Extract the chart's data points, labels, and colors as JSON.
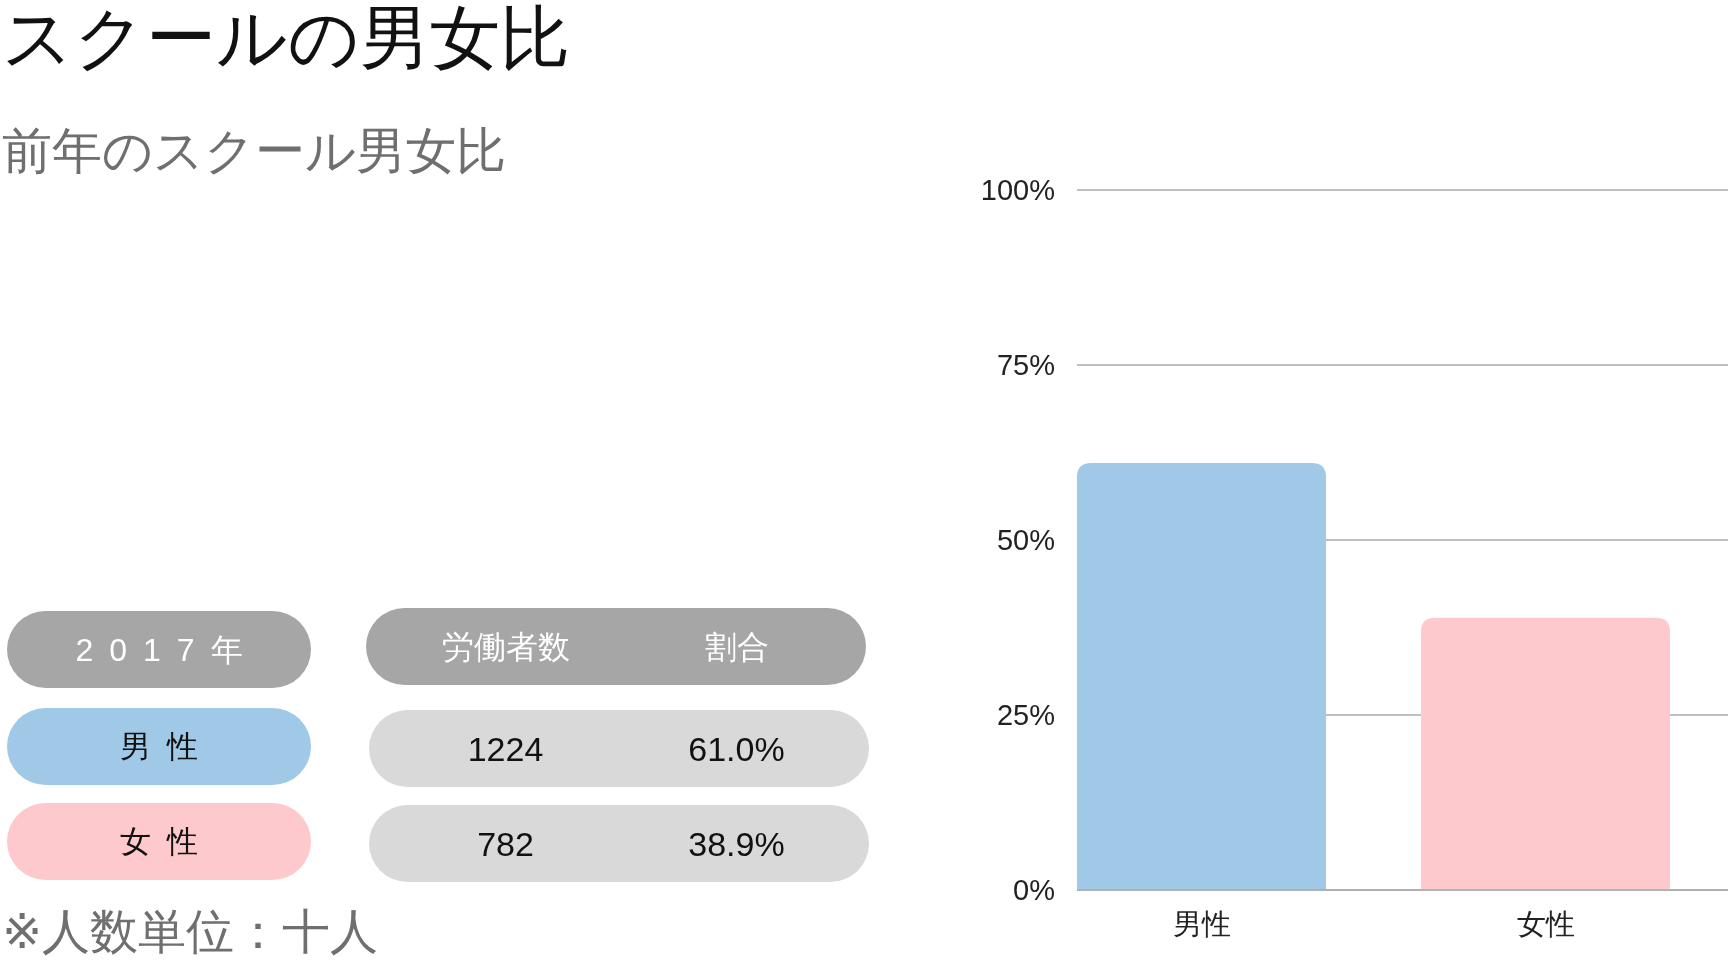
{
  "chart_data": [
    {
      "type": "other",
      "title": "スクールの男女比",
      "subtitle": "前年のスクール男女比",
      "legend_title": "2017年",
      "categories": [
        "男性",
        "女性"
      ],
      "colors": [
        "#9fc9e7",
        "#fdc9cd"
      ],
      "data_labels": true,
      "series": [
        {
          "name": "労働者数",
          "values": [
            1224,
            782
          ]
        },
        {
          "name": "割合",
          "values": [
            61.0,
            38.9
          ],
          "value_labels": [
            "61.0%",
            "38.9%"
          ]
        }
      ],
      "annotations": [
        "※人数単位：十人"
      ]
    },
    {
      "type": "bar",
      "categories": [
        "男性",
        "女性"
      ],
      "values": [
        61.0,
        38.9
      ],
      "colors": [
        "#9fc9e7",
        "#fdc9cd"
      ],
      "ylim": [
        0,
        100
      ],
      "yticks": [
        {
          "value": 0,
          "label": "0%"
        },
        {
          "value": 25,
          "label": "25%"
        },
        {
          "value": 50,
          "label": "50%"
        },
        {
          "value": 75,
          "label": "75%"
        },
        {
          "value": 100,
          "label": "100%"
        }
      ],
      "grid": "y"
    }
  ]
}
